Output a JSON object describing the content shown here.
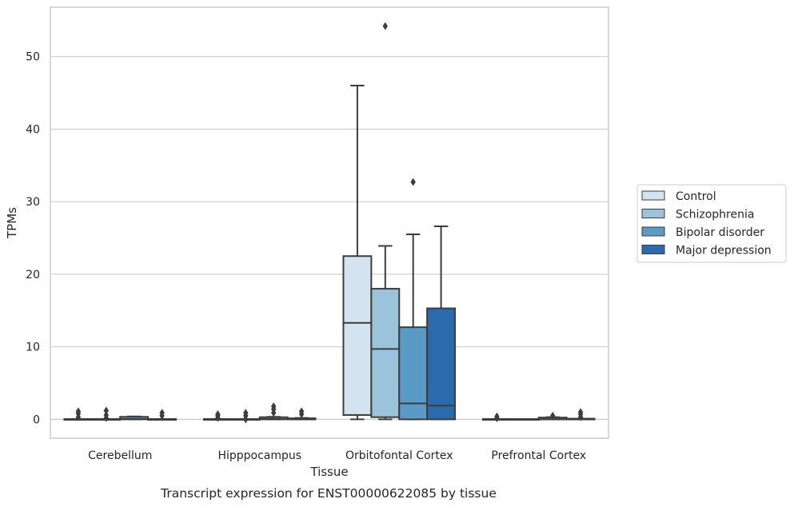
{
  "chart_data": {
    "type": "boxplot",
    "caption": "Transcript expression for ENST00000622085 by tissue",
    "xlabel": "Tissue",
    "ylabel": "TPMs",
    "ylim": [
      -2.6,
      56.8
    ],
    "yticks": [
      0,
      10,
      20,
      30,
      40,
      50
    ],
    "grid": "horizontal",
    "legend_position": "right",
    "categories": [
      "Cerebellum",
      "Hipppocampus",
      "Orbitofontal Cortex",
      "Prefrontal Cortex"
    ],
    "series": [
      {
        "name": "Control",
        "color": "#d4e3f0",
        "boxes": [
          {
            "q1": 0,
            "median": 0,
            "q3": 0.05,
            "wlow": 0,
            "whigh": 0.05,
            "outliers": [
              0.3,
              0.8,
              1.1
            ]
          },
          {
            "q1": 0,
            "median": 0,
            "q3": 0.05,
            "wlow": 0,
            "whigh": 0.05,
            "outliers": [
              0.2,
              0.5,
              0.7
            ]
          },
          {
            "q1": 0.6,
            "median": 13.3,
            "q3": 22.5,
            "wlow": 0,
            "whigh": 46.0,
            "outliers": []
          },
          {
            "q1": 0,
            "median": 0,
            "q3": 0.05,
            "wlow": 0,
            "whigh": 0.05,
            "outliers": [
              0.15,
              0.4
            ]
          }
        ]
      },
      {
        "name": "Schizophrenia",
        "color": "#9cc3dc",
        "boxes": [
          {
            "q1": 0,
            "median": 0,
            "q3": 0.05,
            "wlow": 0,
            "whigh": 0.05,
            "outliers": [
              0.2,
              0.6,
              1.2
            ]
          },
          {
            "q1": 0,
            "median": 0,
            "q3": 0.05,
            "wlow": 0,
            "whigh": 0.05,
            "outliers": [
              0,
              0.5,
              0.9
            ]
          },
          {
            "q1": 0.3,
            "median": 9.7,
            "q3": 18.0,
            "wlow": 0,
            "whigh": 23.9,
            "outliers": [
              54.2
            ]
          },
          {
            "q1": 0,
            "median": 0,
            "q3": 0.05,
            "wlow": 0,
            "whigh": 0.05,
            "outliers": []
          }
        ]
      },
      {
        "name": "Bipolar disorder",
        "color": "#5a9ac6",
        "boxes": [
          {
            "q1": 0,
            "median": 0.05,
            "q3": 0.35,
            "wlow": 0,
            "whigh": 0.4,
            "outliers": []
          },
          {
            "q1": 0,
            "median": 0.05,
            "q3": 0.3,
            "wlow": 0,
            "whigh": 0.35,
            "outliers": [
              0.9,
              1.4,
              1.8
            ]
          },
          {
            "q1": 0,
            "median": 2.2,
            "q3": 12.7,
            "wlow": 0,
            "whigh": 25.5,
            "outliers": [
              32.7
            ]
          },
          {
            "q1": 0,
            "median": 0,
            "q3": 0.25,
            "wlow": 0,
            "whigh": 0.3,
            "outliers": [
              0.5
            ]
          }
        ]
      },
      {
        "name": "Major depression",
        "color": "#2a6aad",
        "boxes": [
          {
            "q1": 0,
            "median": 0,
            "q3": 0.05,
            "wlow": 0,
            "whigh": 0.05,
            "outliers": [
              0.5,
              0.9
            ]
          },
          {
            "q1": 0,
            "median": 0,
            "q3": 0.15,
            "wlow": 0,
            "whigh": 0.2,
            "outliers": [
              0.7,
              1.1
            ]
          },
          {
            "q1": 0,
            "median": 1.9,
            "q3": 15.3,
            "wlow": 0,
            "whigh": 26.6,
            "outliers": []
          },
          {
            "q1": 0,
            "median": 0,
            "q3": 0.1,
            "wlow": 0,
            "whigh": 0.1,
            "outliers": [
              0.3,
              0.7,
              1.0
            ]
          }
        ]
      }
    ]
  }
}
